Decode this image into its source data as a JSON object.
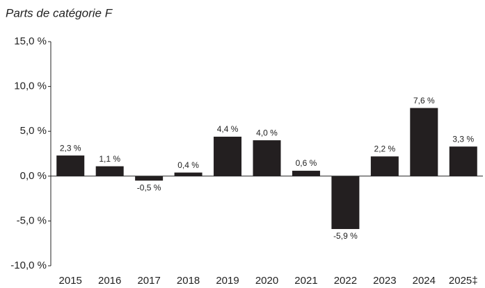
{
  "chart_data": {
    "type": "bar",
    "y_axis_title": "Parts de catégorie F",
    "categories": [
      "2015",
      "2016",
      "2017",
      "2018",
      "2019",
      "2020",
      "2021",
      "2022",
      "2023",
      "2024",
      "2025‡"
    ],
    "values": [
      2.3,
      1.1,
      -0.5,
      0.4,
      4.4,
      4.0,
      0.6,
      -5.9,
      2.2,
      7.6,
      3.3
    ],
    "value_labels": [
      "2,3 %",
      "1,1 %",
      "-0,5 %",
      "0,4 %",
      "4,4 %",
      "4,0 %",
      "0,6 %",
      "-5,9 %",
      "2,2 %",
      "7,6 %",
      "3,3 %"
    ],
    "color": "#231f20",
    "ylim": [
      -10,
      15
    ],
    "yticks": [
      {
        "value": -10,
        "label": "-10,0 %"
      },
      {
        "value": -5,
        "label": "-5,0 %"
      },
      {
        "value": 0,
        "label": "0,0 %"
      },
      {
        "value": 5,
        "label": "5,0 %"
      },
      {
        "value": 10,
        "label": "10,0 %"
      },
      {
        "value": 15,
        "label": "15,0 %"
      }
    ]
  }
}
